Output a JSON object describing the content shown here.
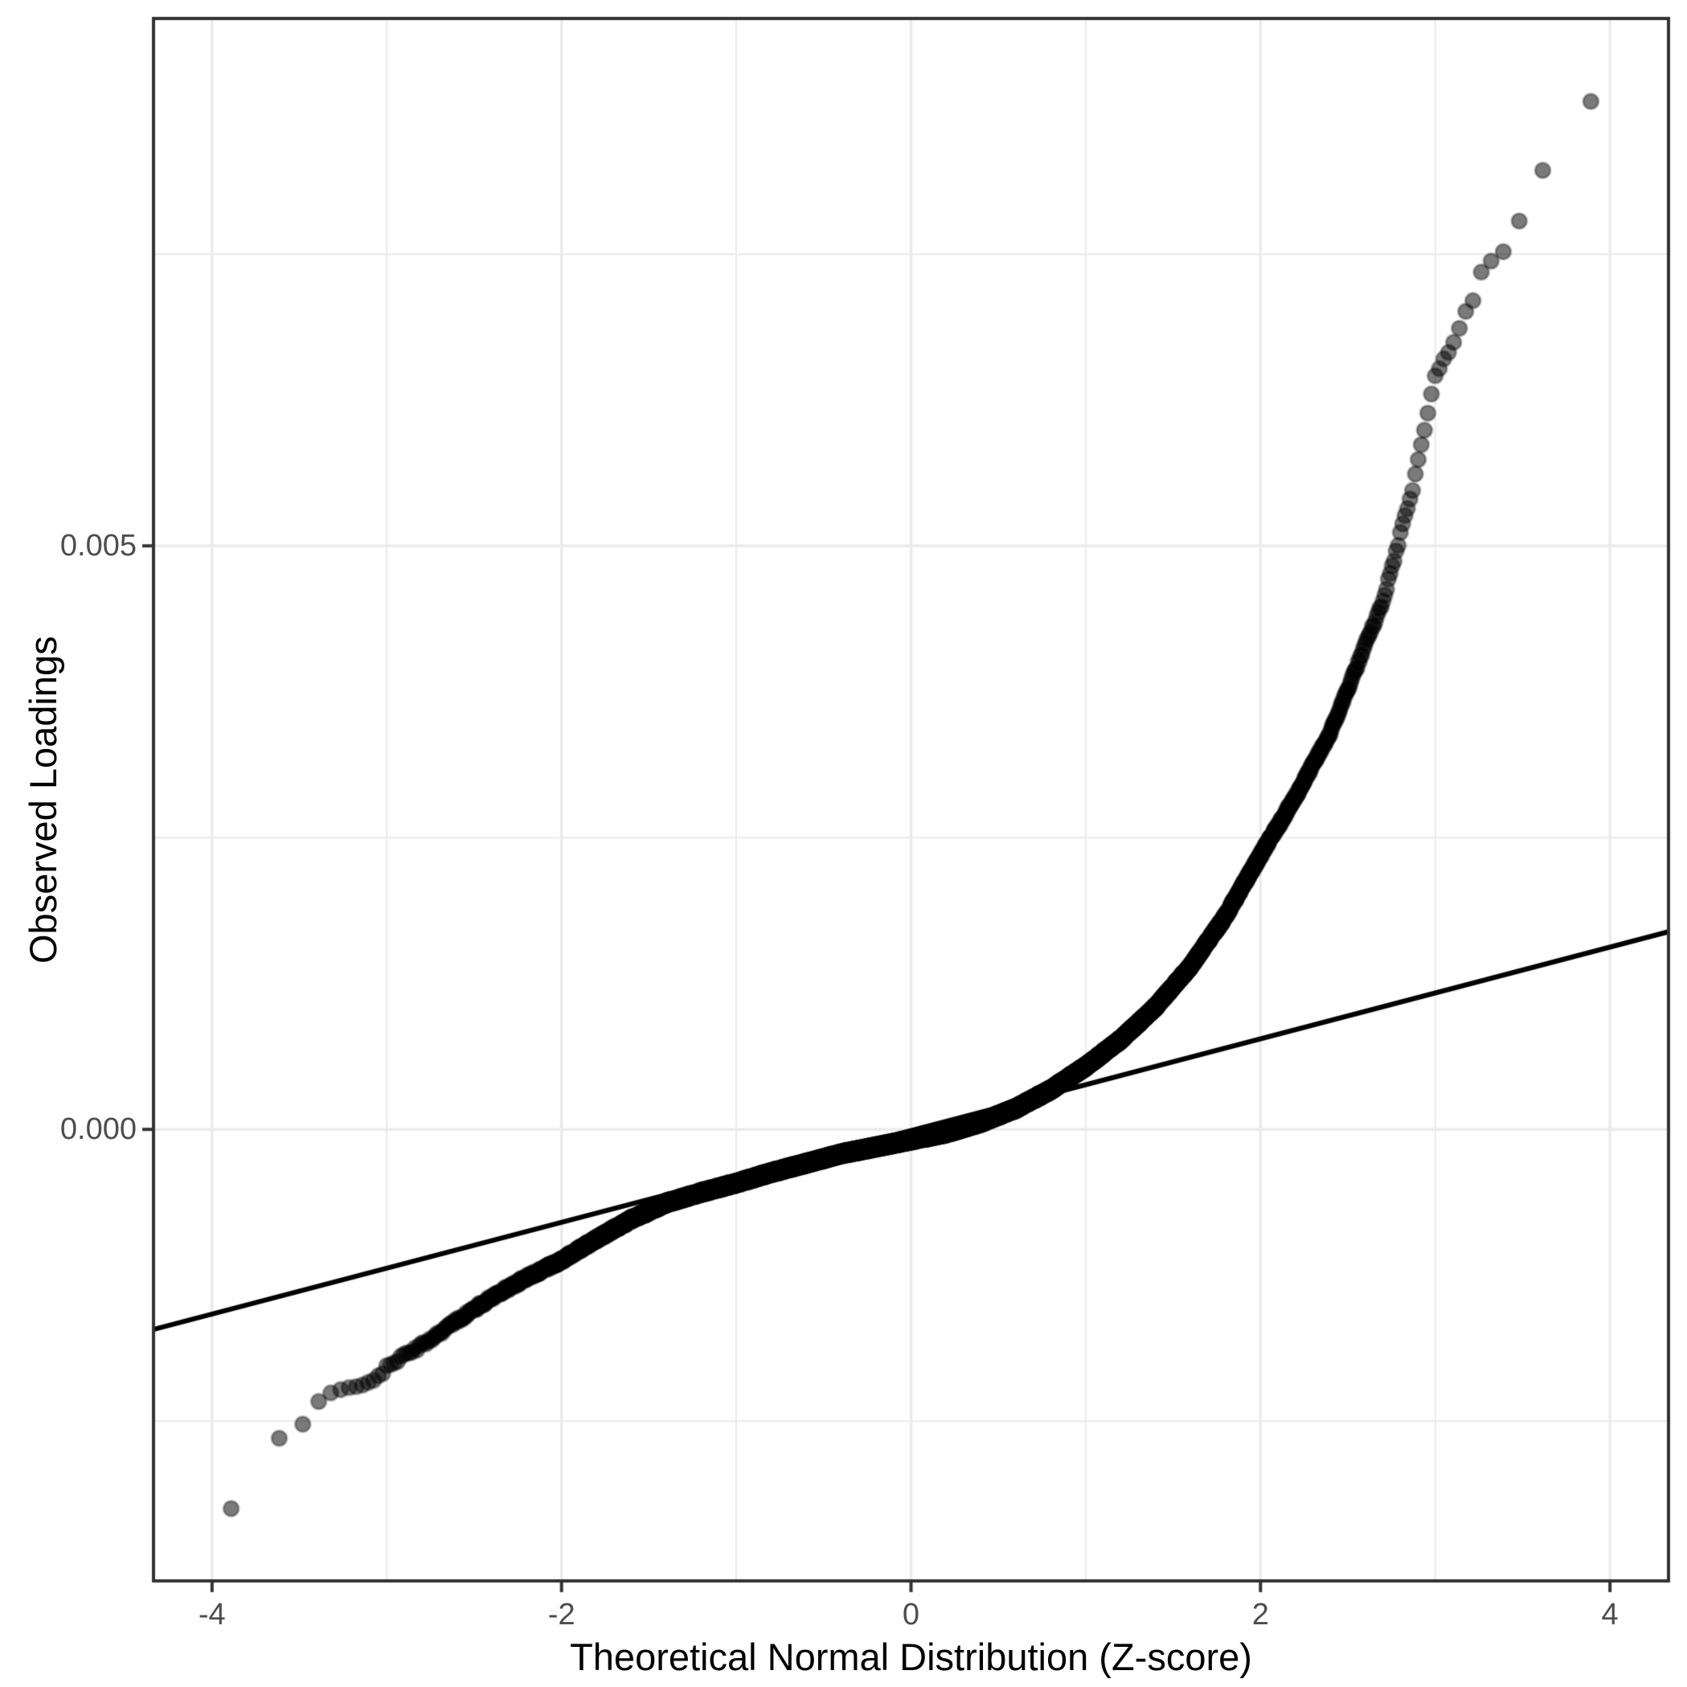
{
  "colors": {
    "background": "#ffffff",
    "panel_background": "#ffffff",
    "grid_major": "#ebebeb",
    "grid_minor": "#ebebeb",
    "panel_border": "#333333",
    "tick_mark": "#333333",
    "tick_label": "#4d4d4d",
    "axis_title": "#000000",
    "point": "#000000",
    "reference_line": "#000000"
  },
  "chart_data": {
    "type": "scatter",
    "variant": "qq-plot",
    "title": "",
    "xlabel": "Theoretical Normal Distribution (Z-score)",
    "ylabel": "Observed Loadings",
    "x_ticks": [
      -4,
      -2,
      0,
      2,
      4
    ],
    "x_tick_labels": [
      "-4",
      "-2",
      "0",
      "2",
      "4"
    ],
    "y_ticks": [
      0.0,
      0.005
    ],
    "y_tick_labels": [
      "0.000",
      "0.005"
    ],
    "x_minor_gridlines": [
      -3,
      -1,
      1,
      3
    ],
    "y_minor_gridlines": [
      -0.0025,
      0.0025,
      0.0075
    ],
    "xlim": [
      -4.335,
      4.335
    ],
    "ylim": [
      -0.003869,
      0.009519
    ],
    "grid": true,
    "legend_position": "none",
    "n_points": 10000,
    "point_alpha": 0.52,
    "extremes": {
      "min_z": -3.93,
      "min_observed": -0.00326,
      "max_z": 3.94,
      "max_observed": 0.00891
    },
    "reference_line": {
      "slope": 0.000393,
      "intercept": -1e-05
    },
    "quantile_curve": [
      [
        -3.93,
        -0.00326
      ],
      [
        -3.72,
        -0.00322
      ],
      [
        -3.62,
        -0.00265
      ],
      [
        -3.54,
        -0.00261
      ],
      [
        -3.48,
        -0.00254
      ],
      [
        -3.43,
        -0.0025
      ],
      [
        -3.38,
        -0.0023
      ],
      [
        -3.27,
        -0.00224
      ],
      [
        -3.15,
        -0.00218
      ],
      [
        -3.03,
        -0.00212
      ],
      [
        -3.0,
        -0.00203
      ],
      [
        -2.8,
        -0.00185
      ],
      [
        -2.6,
        -0.00164
      ],
      [
        -2.4,
        -0.00144
      ],
      [
        -2.2,
        -0.00127
      ],
      [
        -2.0,
        -0.00112
      ],
      [
        -1.8,
        -0.00094
      ],
      [
        -1.6,
        -0.00077
      ],
      [
        -1.4,
        -0.00063
      ],
      [
        -1.2,
        -0.00054
      ],
      [
        -1.0,
        -0.00046
      ],
      [
        -0.8,
        -0.00037
      ],
      [
        -0.6,
        -0.00029
      ],
      [
        -0.4,
        -0.00021
      ],
      [
        -0.2,
        -0.00015
      ],
      [
        0.0,
        -9e-05
      ],
      [
        0.2,
        -3e-05
      ],
      [
        0.4,
        6e-05
      ],
      [
        0.6,
        0.00018
      ],
      [
        0.8,
        0.00034
      ],
      [
        1.0,
        0.00054
      ],
      [
        1.2,
        0.00077
      ],
      [
        1.4,
        0.00105
      ],
      [
        1.6,
        0.0014
      ],
      [
        1.8,
        0.00183
      ],
      [
        2.0,
        0.00235
      ],
      [
        2.2,
        0.00285
      ],
      [
        2.4,
        0.0034
      ],
      [
        2.6,
        0.00415
      ],
      [
        2.7,
        0.00452
      ],
      [
        2.78,
        0.00497
      ],
      [
        2.82,
        0.00522
      ],
      [
        2.87,
        0.00548
      ],
      [
        2.91,
        0.00578
      ],
      [
        2.96,
        0.00615
      ],
      [
        3.0,
        0.00645
      ],
      [
        3.06,
        0.00663
      ],
      [
        3.12,
        0.00678
      ],
      [
        3.17,
        0.007
      ],
      [
        3.22,
        0.00712
      ],
      [
        3.27,
        0.00738
      ],
      [
        3.33,
        0.00747
      ],
      [
        3.39,
        0.00753
      ],
      [
        3.46,
        0.00774
      ],
      [
        3.55,
        0.008
      ],
      [
        3.62,
        0.00825
      ],
      [
        3.72,
        0.0085
      ],
      [
        3.94,
        0.00891
      ]
    ]
  }
}
